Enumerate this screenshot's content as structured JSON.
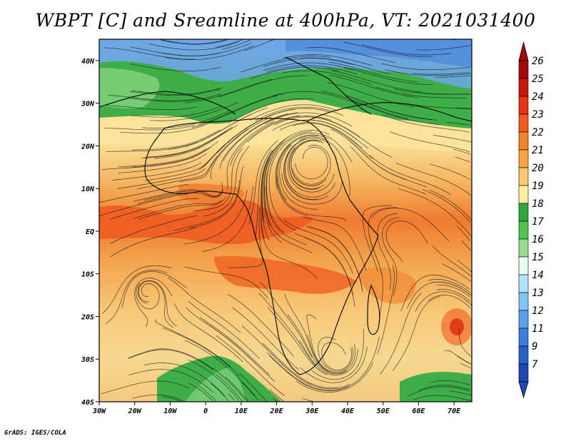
{
  "title": "WBPT [C] and Sreamline at 400hPa, VT: 2021031400",
  "credit": "GrADS: IGES/COLA",
  "map": {
    "lon_range": [
      -30,
      75
    ],
    "lat_range": [
      -40,
      45
    ],
    "x_ticks": [
      {
        "value": -30,
        "label": "30W"
      },
      {
        "value": -20,
        "label": "20W"
      },
      {
        "value": -10,
        "label": "10W"
      },
      {
        "value": 0,
        "label": "0"
      },
      {
        "value": 10,
        "label": "10E"
      },
      {
        "value": 20,
        "label": "20E"
      },
      {
        "value": 30,
        "label": "30E"
      },
      {
        "value": 40,
        "label": "40E"
      },
      {
        "value": 50,
        "label": "50E"
      },
      {
        "value": 60,
        "label": "60E"
      },
      {
        "value": 70,
        "label": "70E"
      }
    ],
    "y_ticks": [
      {
        "value": 40,
        "label": "40N"
      },
      {
        "value": 30,
        "label": "30N"
      },
      {
        "value": 20,
        "label": "20N"
      },
      {
        "value": 10,
        "label": "10N"
      },
      {
        "value": 0,
        "label": "EQ"
      },
      {
        "value": -10,
        "label": "10S"
      },
      {
        "value": -20,
        "label": "20S"
      },
      {
        "value": -30,
        "label": "30S"
      },
      {
        "value": -40,
        "label": "40S"
      }
    ]
  },
  "colorbar": {
    "levels": [
      {
        "label": "26",
        "color": "#a50a0a"
      },
      {
        "label": "25",
        "color": "#c8140a"
      },
      {
        "label": "24",
        "color": "#e63214"
      },
      {
        "label": "23",
        "color": "#f05a1e"
      },
      {
        "label": "22",
        "color": "#f5822d"
      },
      {
        "label": "21",
        "color": "#faa541"
      },
      {
        "label": "20",
        "color": "#fac86e"
      },
      {
        "label": "19",
        "color": "#fff0a0"
      },
      {
        "label": "18",
        "color": "#2ea83c"
      },
      {
        "label": "17",
        "color": "#50c350"
      },
      {
        "label": "16",
        "color": "#96dc8c"
      },
      {
        "label": "15",
        "color": "#e6fff0"
      },
      {
        "label": "14",
        "color": "#b4e1fa"
      },
      {
        "label": "13",
        "color": "#82c3f5"
      },
      {
        "label": "12",
        "color": "#5aa0eb"
      },
      {
        "label": "11",
        "color": "#3c7de1"
      },
      {
        "label": "9",
        "color": "#285fcd"
      },
      {
        "label": "7",
        "color": "#1e46b4"
      }
    ]
  }
}
